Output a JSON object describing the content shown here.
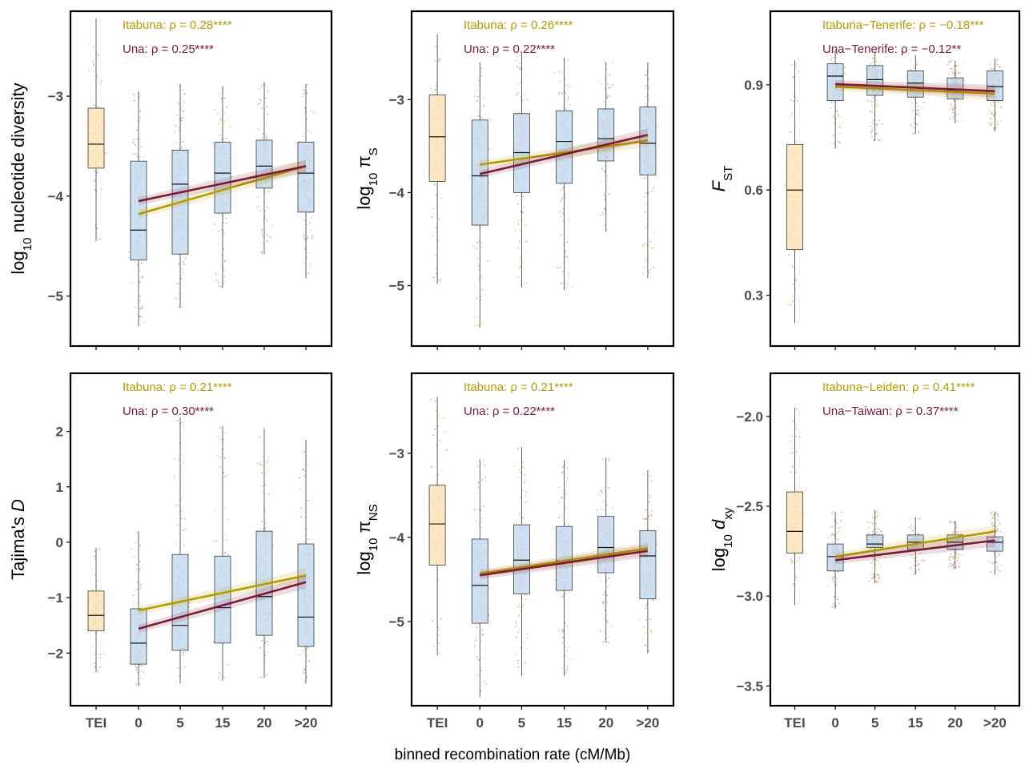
{
  "figure": {
    "xtitle": "binned recombination rate (cM/Mb)",
    "x_categories": [
      "TEI",
      "0",
      "5",
      "15",
      "20",
      ">20"
    ],
    "colors": {
      "itabuna": "#b59a00",
      "una": "#7d1a34",
      "tei_fill": "#fde4b8",
      "bin_fill": "#c5dcf1",
      "box_line": "#3a3a3a",
      "frame": "#000000"
    }
  },
  "chart_data": [
    {
      "id": "p1",
      "type": "boxplot",
      "ylabel": {
        "pre": "log",
        "sub": "10",
        "post": " nucleotide diversity",
        "italic": false
      },
      "ylim": [
        -5.5,
        -2.15
      ],
      "yticks": [
        -5,
        -4,
        -3
      ],
      "ytick_labels": [
        "−5",
        "−4",
        "−3"
      ],
      "boxes": [
        {
          "cat": "TEI",
          "q1": -3.72,
          "median": -3.48,
          "q3": -3.12,
          "wlo": -4.45,
          "whi": -2.22
        },
        {
          "cat": "0",
          "q1": -4.64,
          "median": -4.34,
          "q3": -3.65,
          "wlo": -5.3,
          "whi": -2.95
        },
        {
          "cat": "5",
          "q1": -4.58,
          "median": -3.88,
          "q3": -3.54,
          "wlo": -5.12,
          "whi": -2.88
        },
        {
          "cat": "15",
          "q1": -4.17,
          "median": -3.77,
          "q3": -3.46,
          "wlo": -4.92,
          "whi": -2.9
        },
        {
          "cat": "20",
          "q1": -3.92,
          "median": -3.7,
          "q3": -3.44,
          "wlo": -4.58,
          "whi": -2.86
        },
        {
          "cat": ">20",
          "q1": -4.16,
          "median": -3.77,
          "q3": -3.46,
          "wlo": -4.82,
          "whi": -2.88
        }
      ],
      "fits": [
        {
          "series": "Itabuna",
          "y0": -4.18,
          "y1": -3.7
        },
        {
          "series": "Una",
          "y0": -4.05,
          "y1": -3.7
        }
      ],
      "annotations": [
        {
          "series": "Itabuna",
          "text": "Itabuna: ρ = 0.28****"
        },
        {
          "series": "Una",
          "text": "Una: ρ = 0.25****"
        }
      ]
    },
    {
      "id": "p2",
      "type": "boxplot",
      "ylabel": {
        "pre": "log",
        "sub": "10",
        "post": " π",
        "post_sub": "S",
        "italic": false
      },
      "ylim": [
        -5.65,
        -2.05
      ],
      "yticks": [
        -5,
        -4,
        -3
      ],
      "ytick_labels": [
        "−5",
        "−4",
        "−3"
      ],
      "boxes": [
        {
          "cat": "TEI",
          "q1": -3.88,
          "median": -3.4,
          "q3": -2.95,
          "wlo": -4.98,
          "whi": -2.3
        },
        {
          "cat": "0",
          "q1": -4.35,
          "median": -3.82,
          "q3": -3.22,
          "wlo": -5.45,
          "whi": -2.6
        },
        {
          "cat": "5",
          "q1": -4.0,
          "median": -3.57,
          "q3": -3.15,
          "wlo": -5.02,
          "whi": -2.5
        },
        {
          "cat": "15",
          "q1": -3.9,
          "median": -3.45,
          "q3": -3.12,
          "wlo": -5.05,
          "whi": -2.55
        },
        {
          "cat": "20",
          "q1": -3.66,
          "median": -3.42,
          "q3": -3.1,
          "wlo": -4.42,
          "whi": -2.6
        },
        {
          "cat": ">20",
          "q1": -3.81,
          "median": -3.47,
          "q3": -3.08,
          "wlo": -4.92,
          "whi": -2.6
        }
      ],
      "fits": [
        {
          "series": "Itabuna",
          "y0": -3.7,
          "y1": -3.44
        },
        {
          "series": "Una",
          "y0": -3.8,
          "y1": -3.38
        }
      ],
      "annotations": [
        {
          "series": "Itabuna",
          "text": "Itabuna: ρ = 0.26****"
        },
        {
          "series": "Una",
          "text": "Una: ρ = 0.22****"
        }
      ]
    },
    {
      "id": "p3",
      "type": "boxplot",
      "ylabel": {
        "pre": "",
        "italic_main": "F",
        "sub": "ST",
        "post": "",
        "italic": true
      },
      "ylim": [
        0.155,
        1.11
      ],
      "yticks": [
        0.3,
        0.6,
        0.9
      ],
      "ytick_labels": [
        "0.3",
        "0.6",
        "0.9"
      ],
      "boxes": [
        {
          "cat": "TEI",
          "q1": 0.43,
          "median": 0.6,
          "q3": 0.73,
          "wlo": 0.22,
          "whi": 0.97
        },
        {
          "cat": "0",
          "q1": 0.855,
          "median": 0.925,
          "q3": 0.96,
          "wlo": 0.72,
          "whi": 1.0
        },
        {
          "cat": "5",
          "q1": 0.87,
          "median": 0.915,
          "q3": 0.955,
          "wlo": 0.74,
          "whi": 0.99
        },
        {
          "cat": "15",
          "q1": 0.865,
          "median": 0.905,
          "q3": 0.94,
          "wlo": 0.76,
          "whi": 0.985
        },
        {
          "cat": "20",
          "q1": 0.86,
          "median": 0.885,
          "q3": 0.92,
          "wlo": 0.79,
          "whi": 0.97
        },
        {
          "cat": ">20",
          "q1": 0.855,
          "median": 0.895,
          "q3": 0.94,
          "wlo": 0.77,
          "whi": 0.975
        }
      ],
      "fits": [
        {
          "series": "Itabuna",
          "y0": 0.895,
          "y1": 0.875
        },
        {
          "series": "Una",
          "y0": 0.902,
          "y1": 0.882
        }
      ],
      "annotations": [
        {
          "series": "Itabuna",
          "text": "Itabuna−Tenerife: ρ = −0.18***"
        },
        {
          "series": "Una",
          "text": "Una−Tenerife: ρ = −0.12**"
        }
      ]
    },
    {
      "id": "p4",
      "type": "boxplot",
      "ylabel": {
        "pre": "Tajima's ",
        "italic_main": "D",
        "sub": "",
        "post": "",
        "italic": true
      },
      "ylim": [
        -2.95,
        3.05
      ],
      "yticks": [
        -2,
        -1,
        0,
        1,
        2
      ],
      "ytick_labels": [
        "−2",
        "−1",
        "0",
        "1",
        "2"
      ],
      "boxes": [
        {
          "cat": "TEI",
          "q1": -1.6,
          "median": -1.32,
          "q3": -0.88,
          "wlo": -2.35,
          "whi": -0.1
        },
        {
          "cat": "0",
          "q1": -2.2,
          "median": -1.82,
          "q3": -1.2,
          "wlo": -2.6,
          "whi": 0.2
        },
        {
          "cat": "5",
          "q1": -1.95,
          "median": -1.5,
          "q3": -0.22,
          "wlo": -2.55,
          "whi": 2.25
        },
        {
          "cat": "15",
          "q1": -1.82,
          "median": -1.18,
          "q3": -0.25,
          "wlo": -2.5,
          "whi": 2.1
        },
        {
          "cat": "20",
          "q1": -1.68,
          "median": -0.98,
          "q3": 0.2,
          "wlo": -2.45,
          "whi": 2.05
        },
        {
          "cat": ">20",
          "q1": -1.88,
          "median": -1.35,
          "q3": -0.03,
          "wlo": -2.55,
          "whi": 1.85
        }
      ],
      "fits": [
        {
          "series": "Itabuna",
          "y0": -1.23,
          "y1": -0.6
        },
        {
          "series": "Una",
          "y0": -1.56,
          "y1": -0.72
        }
      ],
      "annotations": [
        {
          "series": "Itabuna",
          "text": "Itabuna: ρ = 0.21****"
        },
        {
          "series": "Una",
          "text": "Una: ρ = 0.30****"
        }
      ]
    },
    {
      "id": "p5",
      "type": "boxplot",
      "ylabel": {
        "pre": "log",
        "sub": "10",
        "post": " π",
        "post_sub": "NS",
        "italic": false
      },
      "ylim": [
        -6.0,
        -2.05
      ],
      "yticks": [
        -5,
        -4,
        -3
      ],
      "ytick_labels": [
        "−5",
        "−4",
        "−3"
      ],
      "boxes": [
        {
          "cat": "TEI",
          "q1": -4.33,
          "median": -3.84,
          "q3": -3.38,
          "wlo": -5.4,
          "whi": -2.33
        },
        {
          "cat": "0",
          "q1": -5.02,
          "median": -4.57,
          "q3": -4.02,
          "wlo": -5.9,
          "whi": -3.07
        },
        {
          "cat": "5",
          "q1": -4.67,
          "median": -4.27,
          "q3": -3.85,
          "wlo": -5.65,
          "whi": -2.93
        },
        {
          "cat": "15",
          "q1": -4.63,
          "median": -4.28,
          "q3": -3.87,
          "wlo": -5.65,
          "whi": -3.08
        },
        {
          "cat": "20",
          "q1": -4.42,
          "median": -4.12,
          "q3": -3.75,
          "wlo": -5.25,
          "whi": -3.05
        },
        {
          "cat": ">20",
          "q1": -4.73,
          "median": -4.22,
          "q3": -3.92,
          "wlo": -5.38,
          "whi": -3.2
        }
      ],
      "fits": [
        {
          "series": "Itabuna",
          "y0": -4.43,
          "y1": -4.13
        },
        {
          "series": "Una",
          "y0": -4.45,
          "y1": -4.16
        }
      ],
      "annotations": [
        {
          "series": "Itabuna",
          "text": "Itabuna: ρ = 0.21****"
        },
        {
          "series": "Una",
          "text": "Una: ρ = 0.22****"
        }
      ]
    },
    {
      "id": "p6",
      "type": "boxplot",
      "ylabel": {
        "pre": "log",
        "sub": "10",
        "post": " ",
        "italic_main": "d",
        "post_sub": "xy",
        "italic": true
      },
      "ylim": [
        -3.61,
        -1.76
      ],
      "yticks": [
        -3.5,
        -3.0,
        -2.5,
        -2.0
      ],
      "ytick_labels": [
        "−3.5",
        "−3.0",
        "−2.5",
        "−2.0"
      ],
      "boxes": [
        {
          "cat": "TEI",
          "q1": -2.76,
          "median": -2.64,
          "q3": -2.42,
          "wlo": -3.05,
          "whi": -1.95
        },
        {
          "cat": "0",
          "q1": -2.86,
          "median": -2.78,
          "q3": -2.71,
          "wlo": -3.07,
          "whi": -2.53
        },
        {
          "cat": "5",
          "q1": -2.73,
          "median": -2.71,
          "q3": -2.66,
          "wlo": -2.93,
          "whi": -2.52
        },
        {
          "cat": "15",
          "q1": -2.74,
          "median": -2.7,
          "q3": -2.66,
          "wlo": -2.88,
          "whi": -2.56
        },
        {
          "cat": "20",
          "q1": -2.74,
          "median": -2.7,
          "q3": -2.66,
          "wlo": -2.85,
          "whi": -2.58
        },
        {
          "cat": ">20",
          "q1": -2.75,
          "median": -2.7,
          "q3": -2.67,
          "wlo": -2.88,
          "whi": -2.53
        }
      ],
      "fits": [
        {
          "series": "Itabuna",
          "y0": -2.78,
          "y1": -2.64
        },
        {
          "series": "Una",
          "y0": -2.8,
          "y1": -2.69
        }
      ],
      "annotations": [
        {
          "series": "Itabuna",
          "text": "Itabuna−Leiden: ρ = 0.41****"
        },
        {
          "series": "Una",
          "text": "Una−Taiwan: ρ = 0.37****"
        }
      ]
    }
  ]
}
